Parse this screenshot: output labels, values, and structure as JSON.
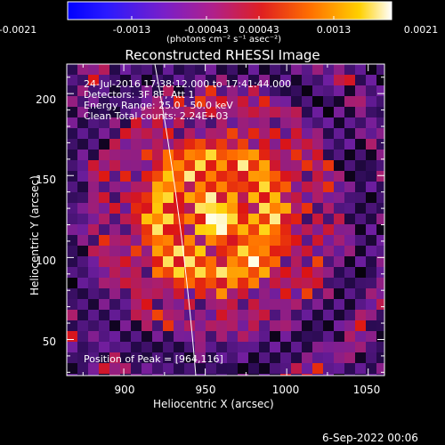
{
  "colorbar": {
    "ticks": [
      "-0.0021",
      "-0.0013",
      "-0.00043",
      "0.00043",
      "0.0013",
      "0.0021"
    ],
    "units_line": "(photons cm⁻² s⁻¹ asec⁻²)"
  },
  "plot": {
    "title": "Reconstructed RHESSI Image",
    "info_lines": [
      "24-Jul-2016 17:38:12.000 to 17:41:44.000",
      "Detectors: 3F 8F, Att 1",
      "Energy Range: 25.0 - 50.0 keV",
      "Clean    Total counts: 2.24E+03"
    ],
    "peak_text": "Position of Peak = [964,116]",
    "x_axis": {
      "label": "Heliocentric X (arcsec)",
      "ticks": [
        "900",
        "950",
        "1000",
        "1050"
      ],
      "range": [
        865,
        1060
      ]
    },
    "y_axis": {
      "label": "Heliocentric Y (arcsec)",
      "ticks": [
        "50",
        "100",
        "150",
        "200"
      ],
      "range": [
        28,
        218
      ]
    },
    "peak": {
      "x": 964,
      "y": 116
    }
  },
  "footer": {
    "date_stamp": "6-Sep-2022 00:06"
  }
}
